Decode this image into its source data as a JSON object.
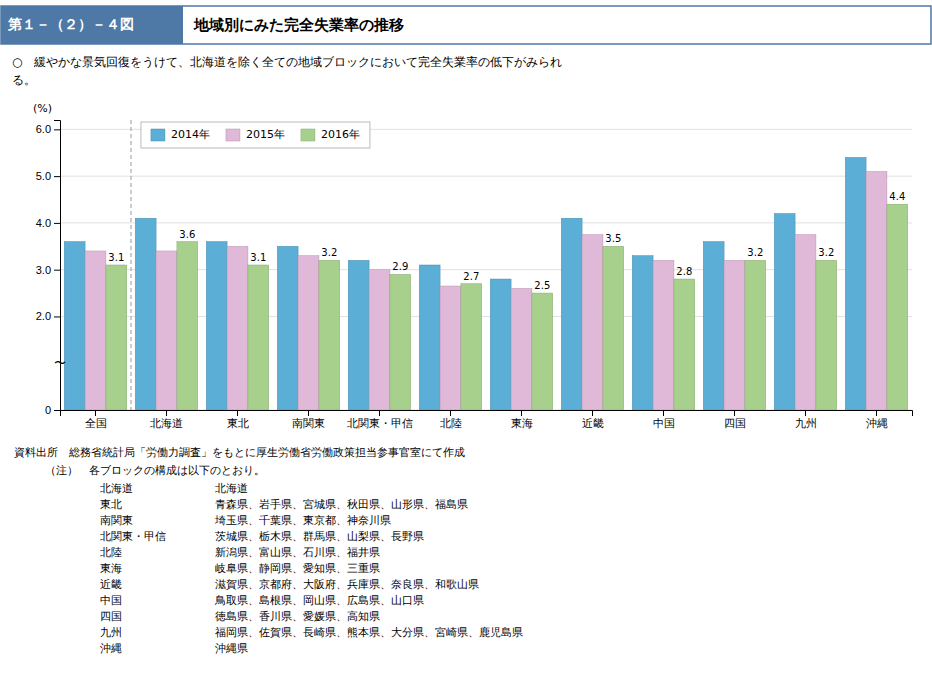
{
  "chart_data": {
    "type": "bar",
    "figure_number": "第１－（２）－４図",
    "title": "地域別にみた完全失業率の推移",
    "subtitle": "○　緩やかな景気回復をうけて、北海道を除く全ての地域ブロックにおいて完全失業率の低下がみられ\nる。",
    "categories": [
      "全国",
      "北海道",
      "東北",
      "南関東",
      "北関東・甲信",
      "北陸",
      "東海",
      "近畿",
      "中国",
      "四国",
      "九州",
      "沖縄"
    ],
    "series": [
      {
        "name": "2014年",
        "color": "#5bafd6",
        "values": [
          3.6,
          4.1,
          3.6,
          3.5,
          3.2,
          3.1,
          2.8,
          4.1,
          3.3,
          3.6,
          4.2,
          5.4
        ]
      },
      {
        "name": "2015年",
        "color": "#e0b8d8",
        "values": [
          3.4,
          3.4,
          3.5,
          3.3,
          3.0,
          2.65,
          2.6,
          3.75,
          3.2,
          3.2,
          3.75,
          5.1
        ]
      },
      {
        "name": "2016年",
        "color": "#a8d08d",
        "values": [
          3.1,
          3.6,
          3.1,
          3.2,
          2.9,
          2.7,
          2.5,
          3.5,
          2.8,
          3.2,
          3.2,
          4.4
        ],
        "data_labels": true
      }
    ],
    "ylim": [
      0,
      6.2
    ],
    "yticks": [
      0,
      {
        "value": 2.0,
        "label": "2.0"
      },
      {
        "value": 3.0,
        "label": "3.0"
      },
      {
        "value": 4.0,
        "label": "4.0"
      },
      {
        "value": 5.0,
        "label": "5.0"
      },
      {
        "value": 6.0,
        "label": "6.0"
      }
    ],
    "ylabel": "(%)",
    "grid": true,
    "legend": "upper left",
    "annotations": [
      "〜"
    ],
    "source": "資料出所　総務省統計局「労働力調査」をもとに厚生労働省労働政策担当参事官室にて作成",
    "note": "（注）　各ブロックの構成は以下のとおり。",
    "note_details": [
      [
        "北海道",
        "北海道"
      ],
      [
        "東北",
        "青森県、岩手県、宮城県、秋田県、山形県、福島県"
      ],
      [
        "南関東",
        "埼玉県、千葉県、東京都、神奈川県"
      ],
      [
        "北関東・甲信",
        "茨城県、栃木県、群馬県、山梨県、長野県"
      ],
      [
        "北陸",
        "新潟県、富山県、石川県、福井県"
      ],
      [
        "東海",
        "岐阜県、静岡県、愛知県、三重県"
      ],
      [
        "近畿",
        "滋賀県、京都府、大阪府、兵庫県、奈良県、和歌山県"
      ],
      [
        "中国",
        "鳥取県、島根県、岡山県、広島県、山口県"
      ],
      [
        "四国",
        "徳島県、香川県、愛媛県、高知県"
      ],
      [
        "九州",
        "福岡県、佐賀県、長崎県、熊本県、大分県、宮崎県、鹿児島県"
      ],
      [
        "沖縄",
        "沖縄県"
      ]
    ]
  }
}
